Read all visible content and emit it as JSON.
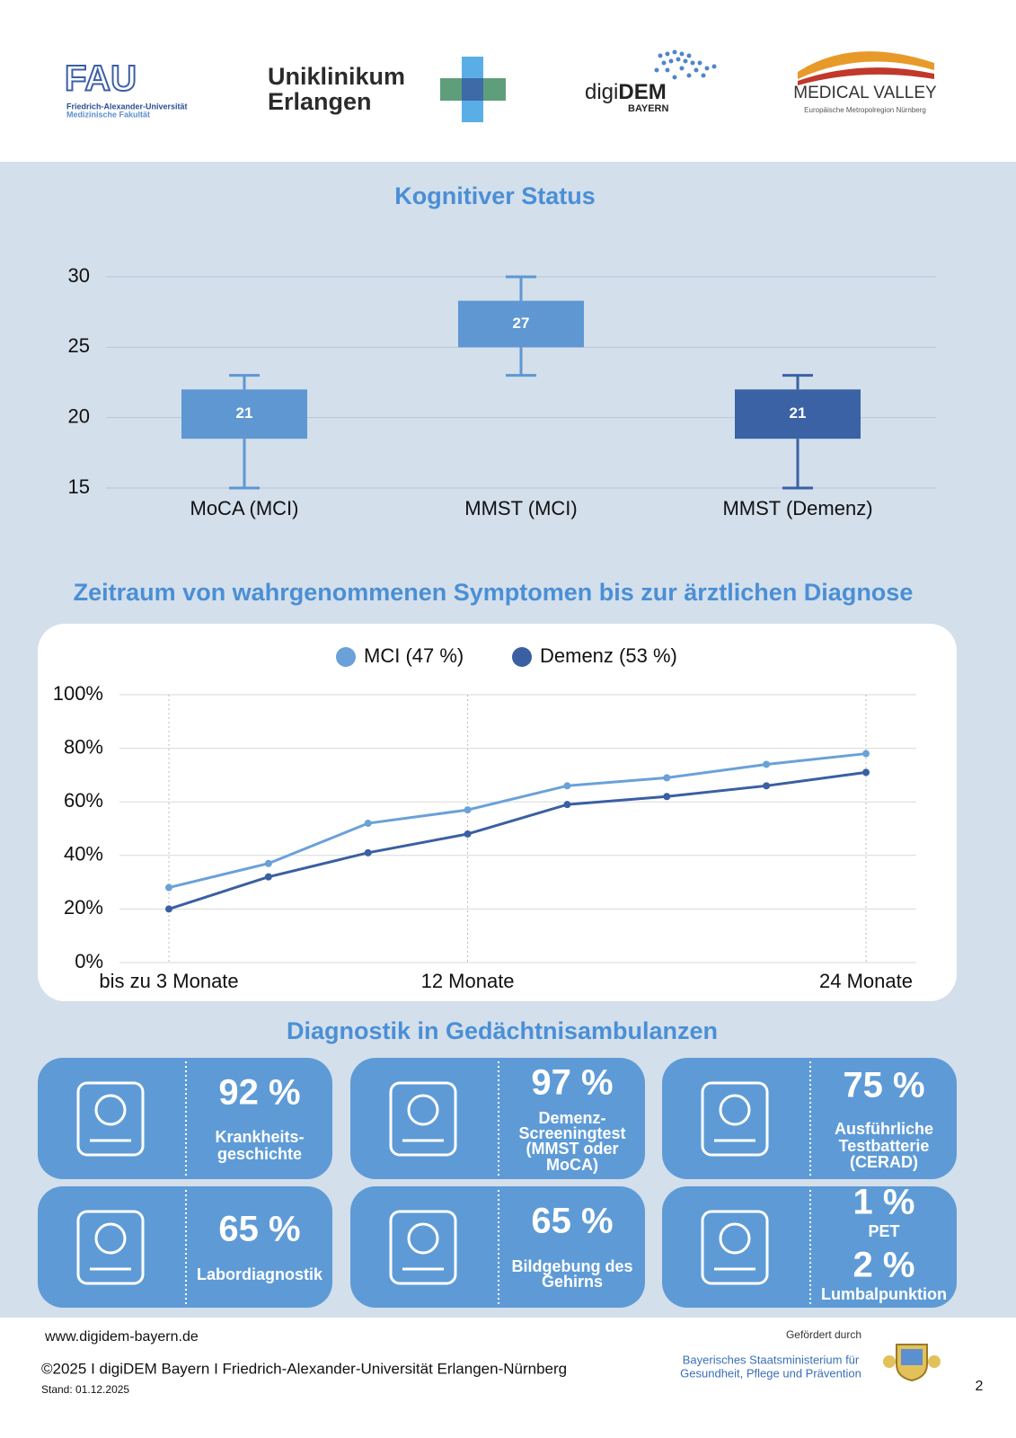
{
  "header": {
    "fau": {
      "name": "FAU",
      "line1": "Friedrich-Alexander-Universität",
      "line2": "Medizinische Fakultät"
    },
    "uniklinikum": {
      "line1": "Uniklinikum",
      "line2": "Erlangen"
    },
    "digidem": {
      "prefix": "digi",
      "name": "DEM",
      "sub": "BAYERN"
    },
    "medical_valley": {
      "name": "MEDICAL VALLEY",
      "sub": "Europäische Metropolregion Nürnberg"
    }
  },
  "chart_data": [
    {
      "type": "box",
      "title": "Kognitiver Status",
      "categories": [
        "MoCA (MCI)",
        "MMST (MCI)",
        "MMST (Demenz)"
      ],
      "boxes": [
        {
          "whisker_low": 15,
          "q1": 18.5,
          "median": 21,
          "q3": 22,
          "whisker_high": 23,
          "color": "#5f97d2"
        },
        {
          "whisker_low": 23,
          "q1": 25,
          "median": 27,
          "q3": 28.3,
          "whisker_high": 30,
          "color": "#5f97d2"
        },
        {
          "whisker_low": 15,
          "q1": 18.5,
          "median": 21,
          "q3": 22,
          "whisker_high": 23,
          "color": "#3a62a5"
        }
      ],
      "ylim": [
        15,
        30
      ],
      "yticks": [
        15,
        20,
        25,
        30
      ],
      "grid": true
    },
    {
      "type": "line",
      "title": "Zeitraum von wahrgenommenen Symptomen bis zur ärztlichen Diagnose",
      "categories": [
        "bis zu 3 Monate",
        null,
        null,
        "12 Monate",
        null,
        null,
        null,
        "24 Monate"
      ],
      "series": [
        {
          "name": "MCI (47 %)",
          "color": "#6aa1d9",
          "values": [
            28,
            37,
            52,
            57,
            66,
            69,
            74,
            78
          ]
        },
        {
          "name": "Demenz (53 %)",
          "color": "#3a5fa2",
          "values": [
            20,
            32,
            41,
            48,
            59,
            62,
            66,
            71
          ]
        }
      ],
      "ylim": [
        0,
        100
      ],
      "yticks": [
        {
          "value": 0,
          "label": "0%"
        },
        {
          "value": 20,
          "label": "20%"
        },
        {
          "value": 40,
          "label": "40%"
        },
        {
          "value": 60,
          "label": "60%"
        },
        {
          "value": 80,
          "label": "80%"
        },
        {
          "value": 100,
          "label": "100%"
        }
      ],
      "grid": true,
      "legend": "top"
    }
  ],
  "diagnostics": {
    "title": "Diagnostik in Gedächtnisambulanzen",
    "cards": [
      {
        "items": [
          {
            "percent": "92 %",
            "label": [
              "Krankheits-",
              "geschichte"
            ]
          }
        ]
      },
      {
        "items": [
          {
            "percent": "97 %",
            "label": [
              "Demenz-",
              "Screeningtest",
              "(MMST oder",
              "MoCA)"
            ]
          }
        ]
      },
      {
        "items": [
          {
            "percent": "75 %",
            "label": [
              "Ausführliche",
              "Testbatterie",
              "(CERAD)"
            ]
          }
        ]
      },
      {
        "items": [
          {
            "percent": "65 %",
            "label": [
              "Labordiagnostik"
            ]
          }
        ]
      },
      {
        "items": [
          {
            "percent": "65 %",
            "label": [
              "Bildgebung des",
              "Gehirns"
            ]
          }
        ]
      },
      {
        "items": [
          {
            "percent": "1 %",
            "label": [
              "PET"
            ]
          },
          {
            "percent": "2 %",
            "label": [
              "Lumbalpunktion"
            ]
          }
        ]
      }
    ]
  },
  "footer": {
    "url": "www.digidem-bayern.de",
    "copyright": "©2025 I digiDEM Bayern I Friedrich-Alexander-Universität Erlangen-Nürnberg",
    "date": "Stand: 01.12.2025",
    "funded_by": "Gefördert durch",
    "ministry": [
      "Bayerisches Staatsministerium für",
      "Gesundheit, Pflege und Prävention"
    ],
    "page": "2"
  }
}
